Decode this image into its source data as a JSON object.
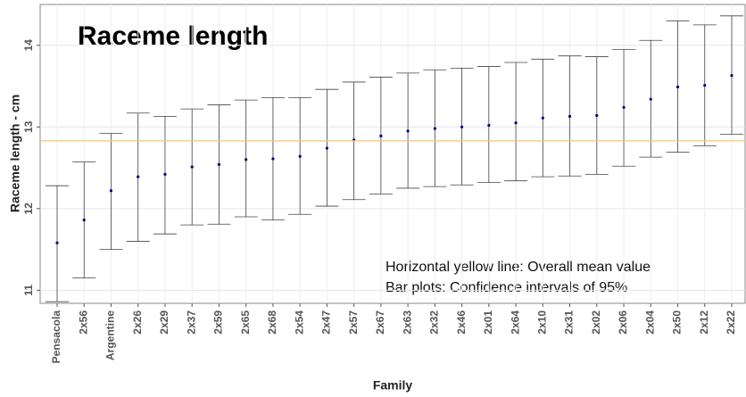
{
  "chart_data": {
    "type": "errorbar",
    "title": "Raceme length",
    "xlabel": "Family",
    "ylabel": "Raceme length - cm",
    "annotations": [
      "Horizontal yellow line: Overall mean value",
      "Bar plots: Confidence intervals of 95%"
    ],
    "categories": [
      "Pensacola",
      "2x56",
      "Argentine",
      "2x26",
      "2x29",
      "2x37",
      "2x59",
      "2x65",
      "2x68",
      "2x54",
      "2x47",
      "2x57",
      "2x67",
      "2x63",
      "2x32",
      "2x46",
      "2x01",
      "2x64",
      "2x10",
      "2x31",
      "2x02",
      "2x06",
      "2x04",
      "2x50",
      "2x12",
      "2x22"
    ],
    "values": [
      11.58,
      11.86,
      12.22,
      12.39,
      12.42,
      12.51,
      12.54,
      12.6,
      12.61,
      12.64,
      12.74,
      12.84,
      12.89,
      12.95,
      12.98,
      13.0,
      13.02,
      13.05,
      13.11,
      13.13,
      13.14,
      13.24,
      13.34,
      13.49,
      13.51,
      13.63
    ],
    "lower": [
      10.86,
      11.15,
      11.5,
      11.6,
      11.69,
      11.8,
      11.81,
      11.9,
      11.86,
      11.93,
      12.03,
      12.11,
      12.18,
      12.25,
      12.27,
      12.29,
      12.32,
      12.34,
      12.39,
      12.4,
      12.42,
      12.52,
      12.63,
      12.69,
      12.77,
      12.91
    ],
    "upper": [
      12.28,
      12.57,
      12.92,
      13.17,
      13.13,
      13.22,
      13.27,
      13.33,
      13.36,
      13.36,
      13.46,
      13.55,
      13.61,
      13.66,
      13.7,
      13.72,
      13.74,
      13.79,
      13.83,
      13.87,
      13.86,
      13.95,
      14.06,
      14.3,
      14.25,
      14.36
    ],
    "color": "#00008b",
    "bar_color": "#444444",
    "mean_line": 12.83,
    "mean_line_color": "#f5c37a",
    "ylim": [
      10.84,
      14.5
    ],
    "yticks": [
      11,
      12,
      13,
      14
    ],
    "grid": true
  }
}
